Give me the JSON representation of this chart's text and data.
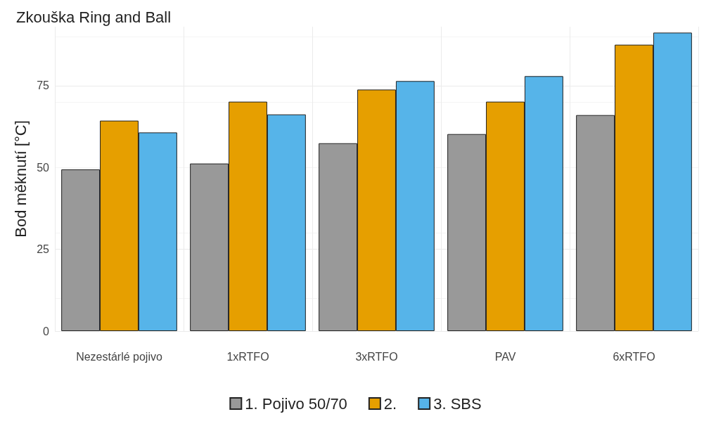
{
  "chart_data": {
    "type": "bar",
    "title": "Zkouška Ring and Ball",
    "ylabel": "Bod měknutí [°C]",
    "categories": [
      "Nezestárlé pojivo",
      "1xRTFO",
      "3xRTFO",
      "PAV",
      "6xRTFO"
    ],
    "series": [
      {
        "name": "1. Pojivo 50/70",
        "color": "#999999",
        "values": [
          49.4,
          51.2,
          57.4,
          60.2,
          66.0
        ]
      },
      {
        "name": "2.",
        "color": "#e69f00",
        "values": [
          64.3,
          70.1,
          73.8,
          70.1,
          87.5
        ]
      },
      {
        "name": "3. SBS",
        "color": "#56b4e9",
        "values": [
          60.7,
          66.2,
          76.4,
          77.9,
          91.2
        ]
      }
    ],
    "ylim": [
      0,
      93
    ],
    "yticks": [
      0,
      25,
      50,
      75
    ],
    "grid": true,
    "legend": "bottom"
  }
}
